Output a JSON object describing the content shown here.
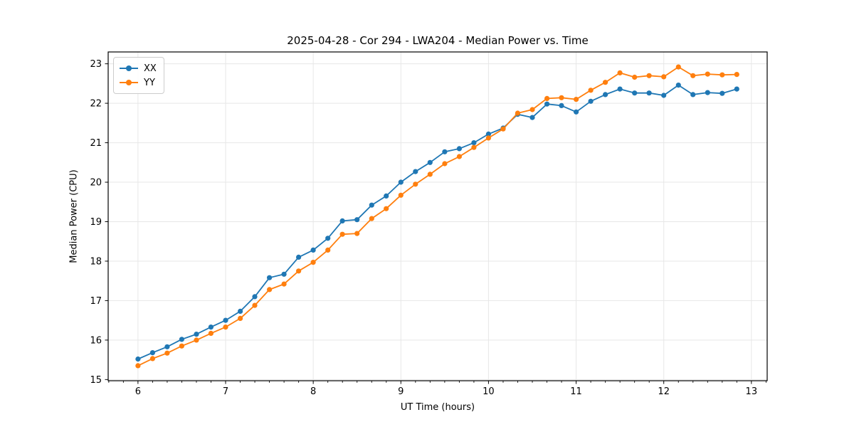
{
  "chart_data": {
    "type": "line",
    "title": "2025-04-28 - Cor 294 - LWA204 - Median Power vs. Time",
    "xlabel": "UT Time (hours)",
    "ylabel": "Median Power (CPU)",
    "x": [
      6,
      6.167,
      6.333,
      6.5,
      6.667,
      6.833,
      7,
      7.167,
      7.333,
      7.5,
      7.667,
      7.833,
      8,
      8.167,
      8.333,
      8.5,
      8.667,
      8.833,
      9,
      9.167,
      9.333,
      9.5,
      9.667,
      9.833,
      10,
      10.167,
      10.333,
      10.5,
      10.667,
      10.833,
      11,
      11.167,
      11.333,
      11.5,
      11.667,
      11.833,
      12,
      12.167,
      12.333,
      12.5,
      12.667,
      12.833
    ],
    "series": [
      {
        "name": "XX",
        "color": "#1f77b4",
        "values": [
          15.52,
          15.68,
          15.83,
          16.02,
          16.15,
          16.33,
          16.5,
          16.73,
          17.1,
          17.58,
          17.67,
          18.1,
          18.28,
          18.58,
          19.02,
          19.05,
          19.42,
          19.65,
          20.0,
          20.27,
          20.5,
          20.77,
          20.85,
          21.0,
          21.22,
          21.37,
          21.72,
          21.64,
          21.98,
          21.94,
          21.78,
          22.05,
          22.22,
          22.36,
          22.26,
          22.26,
          22.2,
          22.46,
          22.22,
          22.27,
          22.25,
          22.36
        ]
      },
      {
        "name": "YY",
        "color": "#ff7f0e",
        "values": [
          15.35,
          15.53,
          15.67,
          15.85,
          16.0,
          16.17,
          16.33,
          16.55,
          16.88,
          17.28,
          17.42,
          17.75,
          17.97,
          18.28,
          18.68,
          18.7,
          19.08,
          19.33,
          19.67,
          19.95,
          20.2,
          20.47,
          20.65,
          20.88,
          21.12,
          21.35,
          21.75,
          21.84,
          22.12,
          22.14,
          22.1,
          22.33,
          22.53,
          22.77,
          22.66,
          22.7,
          22.67,
          22.92,
          22.7,
          22.74,
          22.72,
          22.73
        ]
      }
    ],
    "xlim": [
      5.66,
      13.18
    ],
    "ylim": [
      14.97,
      23.3
    ],
    "x_ticks": [
      6,
      7,
      8,
      9,
      10,
      11,
      12,
      13
    ],
    "y_ticks": [
      15,
      16,
      17,
      18,
      19,
      20,
      21,
      22,
      23
    ],
    "x_minor_step": 0.16667,
    "grid": true,
    "grid_color": "#e7e7e7",
    "spine_color": "#000000",
    "legend_position": "upper left"
  }
}
